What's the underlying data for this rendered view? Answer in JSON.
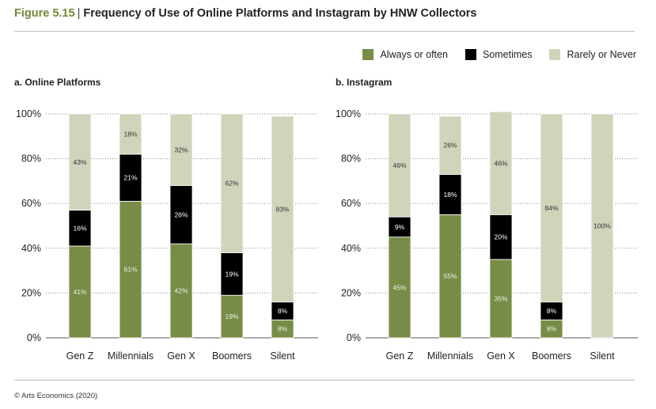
{
  "header": {
    "figure_number": "Figure 5.15",
    "title": "Frequency of Use of Online Platforms and Instagram by HNW Collectors"
  },
  "legend": {
    "items": [
      {
        "label": "Always or often",
        "color": "#778d47"
      },
      {
        "label": "Sometimes",
        "color": "#000000"
      },
      {
        "label": "Rarely or Never",
        "color": "#cfd4bb"
      }
    ]
  },
  "footer": {
    "source": "© Arts Economics (2020)"
  },
  "chart_data": [
    {
      "type": "bar",
      "stacked": true,
      "title": "a. Online Platforms",
      "categories": [
        "Gen Z",
        "Millennials",
        "Gen X",
        "Boomers",
        "Silent"
      ],
      "series": [
        {
          "name": "Always or often",
          "color": "#778d47",
          "values": [
            41,
            61,
            42,
            19,
            8
          ]
        },
        {
          "name": "Sometimes",
          "color": "#000000",
          "values": [
            16,
            21,
            26,
            19,
            8
          ]
        },
        {
          "name": "Rarely or Never",
          "color": "#cfd4bb",
          "values": [
            43,
            18,
            32,
            62,
            83
          ]
        }
      ],
      "ylim": [
        0,
        100
      ],
      "yticks": [
        "0%",
        "20%",
        "40%",
        "60%",
        "80%",
        "100%"
      ],
      "grid": true
    },
    {
      "type": "bar",
      "stacked": true,
      "title": "b. Instagram",
      "categories": [
        "Gen Z",
        "Millennials",
        "Gen X",
        "Boomers",
        "Silent"
      ],
      "series": [
        {
          "name": "Always or often",
          "color": "#778d47",
          "values": [
            45,
            55,
            35,
            8,
            0
          ]
        },
        {
          "name": "Sometimes",
          "color": "#000000",
          "values": [
            9,
            18,
            20,
            8,
            0
          ]
        },
        {
          "name": "Rarely or Never",
          "color": "#cfd4bb",
          "values": [
            46,
            26,
            46,
            84,
            100
          ]
        }
      ],
      "ylim": [
        0,
        100
      ],
      "yticks": [
        "0%",
        "20%",
        "40%",
        "60%",
        "80%",
        "100%"
      ],
      "grid": true
    }
  ]
}
